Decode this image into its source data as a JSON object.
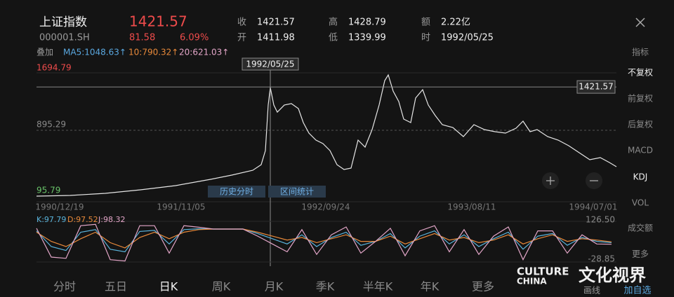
{
  "header": {
    "name": "上证指数",
    "price": "1421.57",
    "code": "000001.SH",
    "change": "81.58",
    "change_pct": "6.09%",
    "stats": [
      {
        "label": "收",
        "value": "1421.57"
      },
      {
        "label": "开",
        "value": "1411.98"
      },
      {
        "label": "高",
        "value": "1428.79"
      },
      {
        "label": "低",
        "value": "1339.99"
      },
      {
        "label": "额",
        "value": "2.22亿"
      },
      {
        "label": "时",
        "value": "1992/05/25"
      }
    ]
  },
  "ma": {
    "overlay": "叠加",
    "ma5": "MA5:1048.63↑",
    "ma10": "10:790.32↑",
    "ma20": "20:621.03↑"
  },
  "price_chart": {
    "type": "line",
    "color": "#e6e6e6",
    "x": [
      0,
      48,
      98,
      148,
      198,
      248,
      278,
      308,
      320,
      326,
      330,
      333,
      338,
      343,
      353,
      363,
      373,
      380,
      388,
      398,
      408,
      418,
      428,
      438,
      448,
      458,
      468,
      478,
      488,
      496,
      501,
      508,
      516,
      523,
      533,
      540,
      550,
      558,
      568,
      578,
      593,
      608,
      623,
      638,
      653,
      668,
      683,
      693,
      703,
      713,
      728,
      743,
      758,
      773,
      788,
      803,
      816,
      826
    ],
    "values": [
      96,
      104,
      130,
      172,
      223,
      300,
      351,
      410,
      478,
      649,
      1202,
      1414,
      1202,
      1116,
      1202,
      1219,
      1159,
      989,
      861,
      776,
      734,
      649,
      478,
      419,
      436,
      776,
      691,
      904,
      1202,
      1499,
      1567,
      1371,
      1244,
      1031,
      989,
      1287,
      1389,
      1202,
      1074,
      963,
      929,
      819,
      963,
      904,
      878,
      861,
      921,
      1006,
      878,
      904,
      819,
      776,
      708,
      623,
      538,
      564,
      504,
      453
    ],
    "xlim": [
      0,
      826
    ],
    "ylim": [
      95.79,
      1694.79
    ],
    "yticks": [
      95.79,
      895.29,
      1694.79
    ],
    "xticks": [
      {
        "value": 33,
        "label": "1990/12/19"
      },
      {
        "value": 206,
        "label": "1991/11/05"
      },
      {
        "value": 412,
        "label": "1992/09/24"
      },
      {
        "value": 620,
        "label": "1993/08/11"
      },
      {
        "value": 793,
        "label": "1994/07/01"
      }
    ],
    "crosshair": {
      "x": 333,
      "x_label": "1992/05/25",
      "y": 1421.57
    },
    "buttons": [
      "历史分时",
      "区间统计"
    ]
  },
  "kdj_chart": {
    "type": "line",
    "x": [
      0,
      21,
      42,
      63,
      84,
      105,
      126,
      147,
      168,
      189,
      210,
      231,
      252,
      273,
      294,
      315,
      336,
      357,
      378,
      399,
      420,
      441,
      462,
      483,
      504,
      525,
      546,
      567,
      588,
      609,
      630,
      651,
      672,
      693,
      714,
      735,
      756,
      777,
      798,
      819
    ],
    "series": [
      {
        "name": "K:97.79",
        "color": "#5ab4dc",
        "values": [
          90,
          30,
          15,
          85,
          95,
          20,
          10,
          88,
          92,
          40,
          95,
          98,
          97,
          97,
          97,
          80,
          60,
          40,
          75,
          30,
          65,
          85,
          35,
          50,
          80,
          25,
          70,
          90,
          40,
          75,
          30,
          60,
          85,
          20,
          70,
          80,
          35,
          65,
          50,
          45
        ]
      },
      {
        "name": "D:97.52",
        "color": "#e8893a",
        "values": [
          85,
          50,
          30,
          60,
          85,
          45,
          25,
          65,
          85,
          60,
          85,
          95,
          97,
          97,
          97,
          85,
          70,
          55,
          65,
          45,
          60,
          75,
          50,
          50,
          70,
          40,
          60,
          80,
          55,
          65,
          45,
          55,
          75,
          40,
          60,
          75,
          50,
          60,
          55,
          48
        ]
      },
      {
        "name": "J:98.32",
        "color": "#e3a6c8",
        "values": [
          100,
          -10,
          -15,
          110,
          115,
          -20,
          -25,
          110,
          110,
          5,
          110,
          104,
          97,
          97,
          97,
          70,
          40,
          10,
          95,
          0,
          75,
          105,
          5,
          50,
          100,
          -5,
          90,
          110,
          10,
          95,
          0,
          70,
          105,
          -20,
          90,
          90,
          5,
          75,
          40,
          39
        ]
      }
    ],
    "xlim": [
      0,
      826
    ],
    "ylim": [
      -28.85,
      126.5
    ],
    "yticks": [
      {
        "value": 126.5,
        "label": "126.50"
      },
      -28.85
    ]
  },
  "sidebar": [
    "指标",
    "不复权",
    "前复权",
    "后复权",
    "MACD",
    "KDJ",
    "VOL",
    "成交额",
    "更多"
  ],
  "tabs": [
    "分时",
    "五日",
    "日K",
    "周K",
    "月K",
    "季K",
    "半年K",
    "年K",
    "更多"
  ],
  "footer": {
    "draw": "画线",
    "add": "加自选"
  },
  "watermark": {
    "en1": "CULTURE",
    "en2": "CHINA",
    "zh": "文化视界"
  }
}
